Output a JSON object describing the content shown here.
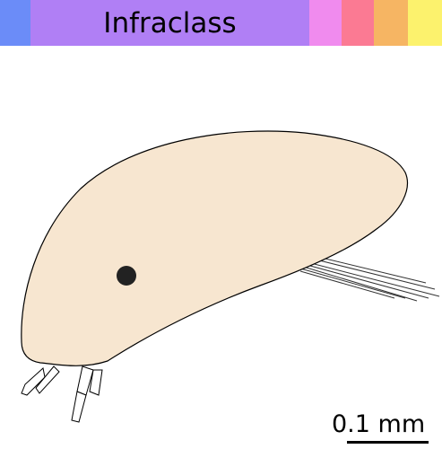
{
  "rank_bar": {
    "title": "Infraclass",
    "segment_colors": [
      "#6b8cf8",
      "#b07ff5",
      "#f08bee",
      "#fb7a93",
      "#f6b563",
      "#fcf26d"
    ]
  },
  "figure": {
    "body_color": "#f7e6d0",
    "outline_color": "#000000",
    "eye_color": "#222222"
  },
  "scale": {
    "label": "0.1 mm"
  }
}
